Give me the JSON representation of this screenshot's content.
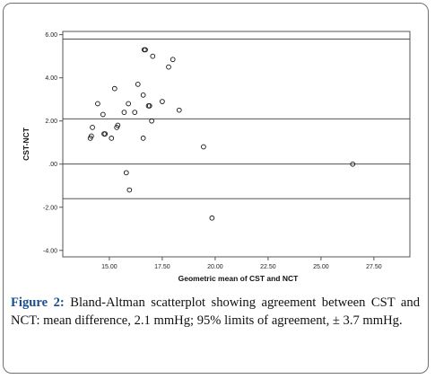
{
  "caption": {
    "label": "Figure 2:",
    "text": "Bland-Altman scatterplot showing agreement between CST and NCT: mean difference, 2.1 mmHg; 95% limits of agreement, ± 3.7 mmHg."
  },
  "colors": {
    "frame": "#6f6f6f",
    "caption_label": "#1a4f8a",
    "plot_border": "#555555",
    "marker": "#111111"
  },
  "chart_data": {
    "type": "scatter",
    "title": "",
    "xlabel": "Geometric mean of CST and NCT",
    "ylabel": "CST-NCT",
    "xlim": [
      12.8,
      29.2
    ],
    "ylim": [
      -4.3,
      6.15
    ],
    "xticks": [
      "15.00",
      "17.50",
      "20.00",
      "22.50",
      "25.00",
      "27.50"
    ],
    "yticks": [
      "6.00",
      "4.00",
      "2.00",
      ".00",
      "-2.00",
      "-4.00"
    ],
    "reference_lines": [
      {
        "name": "upper limit of agreement",
        "y": 5.8
      },
      {
        "name": "mean difference",
        "y": 2.1
      },
      {
        "name": "baseline",
        "y": 0.0
      },
      {
        "name": "lower limit of agreement",
        "y": -1.6
      }
    ],
    "grid": false,
    "marker": "open-circle",
    "points": [
      {
        "x": 14.1,
        "y": 1.2
      },
      {
        "x": 14.15,
        "y": 1.3
      },
      {
        "x": 14.2,
        "y": 1.7
      },
      {
        "x": 14.45,
        "y": 2.8
      },
      {
        "x": 14.7,
        "y": 2.3
      },
      {
        "x": 14.75,
        "y": 1.4
      },
      {
        "x": 14.8,
        "y": 1.4
      },
      {
        "x": 15.1,
        "y": 1.2
      },
      {
        "x": 15.25,
        "y": 3.5
      },
      {
        "x": 15.35,
        "y": 1.7
      },
      {
        "x": 15.4,
        "y": 1.8
      },
      {
        "x": 15.7,
        "y": 2.4
      },
      {
        "x": 15.8,
        "y": -0.4
      },
      {
        "x": 15.9,
        "y": 2.8
      },
      {
        "x": 15.95,
        "y": -1.2
      },
      {
        "x": 16.2,
        "y": 2.4
      },
      {
        "x": 16.35,
        "y": 3.7
      },
      {
        "x": 16.6,
        "y": 3.2
      },
      {
        "x": 16.6,
        "y": 1.2
      },
      {
        "x": 16.65,
        "y": 5.3
      },
      {
        "x": 16.7,
        "y": 5.3
      },
      {
        "x": 16.85,
        "y": 2.7
      },
      {
        "x": 16.9,
        "y": 2.7
      },
      {
        "x": 17.0,
        "y": 2.0
      },
      {
        "x": 17.05,
        "y": 5.0
      },
      {
        "x": 17.5,
        "y": 2.9
      },
      {
        "x": 17.8,
        "y": 4.5
      },
      {
        "x": 18.0,
        "y": 4.85
      },
      {
        "x": 18.3,
        "y": 2.5
      },
      {
        "x": 19.45,
        "y": 0.8
      },
      {
        "x": 19.85,
        "y": -2.5
      },
      {
        "x": 26.5,
        "y": 0.0
      }
    ]
  }
}
